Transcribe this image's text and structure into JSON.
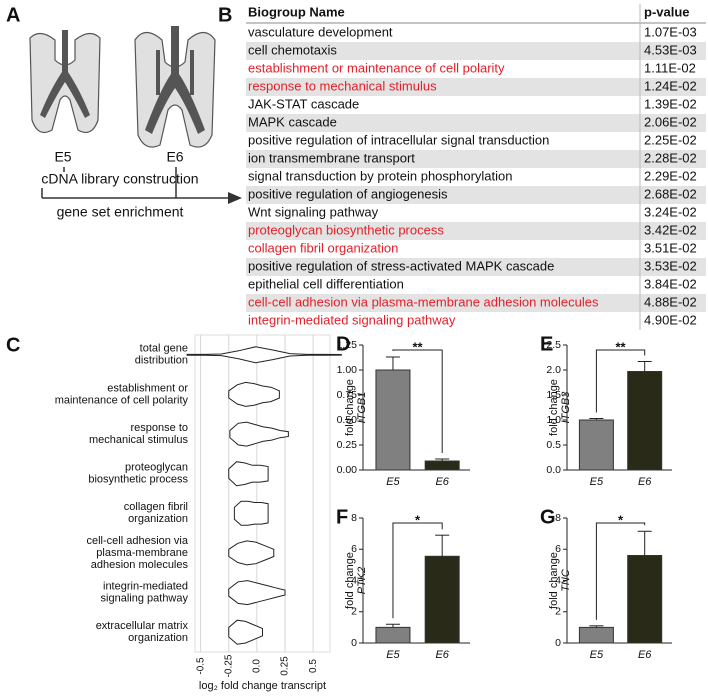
{
  "diagram": {
    "letter": "A",
    "stage_left": "E5",
    "stage_right": "E6",
    "step1": "cDNA library construction",
    "step2": "gene set enrichment"
  },
  "table": {
    "letter": "B",
    "header": [
      "Biogroup Name",
      "p-value"
    ],
    "highlight_color": "#e3202a",
    "stripe_color": "#e3e3e3",
    "rows": [
      {
        "name": "vasculature development",
        "p_value": "1.07E-03",
        "highlight": false
      },
      {
        "name": "cell chemotaxis",
        "p_value": "4.53E-03",
        "highlight": false
      },
      {
        "name": "establishment or maintenance of cell polarity",
        "p_value": "1.11E-02",
        "highlight": true
      },
      {
        "name": "response to mechanical stimulus",
        "p_value": "1.24E-02",
        "highlight": true
      },
      {
        "name": "JAK-STAT cascade",
        "p_value": "1.39E-02",
        "highlight": false
      },
      {
        "name": "MAPK cascade",
        "p_value": "2.06E-02",
        "highlight": false
      },
      {
        "name": "positive regulation of intracellular signal transduction",
        "p_value": "2.25E-02",
        "highlight": false
      },
      {
        "name": "ion transmembrane transport",
        "p_value": "2.28E-02",
        "highlight": false
      },
      {
        "name": "signal transduction by protein phosphorylation",
        "p_value": "2.29E-02",
        "highlight": false
      },
      {
        "name": "positive regulation of angiogenesis",
        "p_value": "2.68E-02",
        "highlight": false
      },
      {
        "name": "Wnt signaling pathway",
        "p_value": "3.24E-02",
        "highlight": false
      },
      {
        "name": "proteoglycan biosynthetic process",
        "p_value": "3.42E-02",
        "highlight": true
      },
      {
        "name": "collagen fibril organization",
        "p_value": "3.51E-02",
        "highlight": true
      },
      {
        "name": "positive regulation of stress-activated MAPK cascade",
        "p_value": "3.53E-02",
        "highlight": false
      },
      {
        "name": "epithelial cell differentiation",
        "p_value": "3.84E-02",
        "highlight": false
      },
      {
        "name": "cell-cell adhesion via plasma-membrane adhesion molecules",
        "p_value": "4.88E-02",
        "highlight": true
      },
      {
        "name": "integrin-mediated signaling pathway",
        "p_value": "4.90E-02",
        "highlight": true
      }
    ]
  },
  "chart_data": [
    {
      "type": "violin",
      "panel_label": "C",
      "xlabel": "log₂ fold change transcript",
      "grid": true,
      "xlim": [
        -0.55,
        0.65
      ],
      "xticks": [
        {
          "value": -0.5,
          "label": "-0.5"
        },
        {
          "value": -0.25,
          "label": "-0.25"
        },
        {
          "value": 0,
          "label": "0.0"
        },
        {
          "value": 0.25,
          "label": "0.25"
        },
        {
          "value": 0.5,
          "label": "0.5"
        }
      ],
      "violins": [
        {
          "label": [
            "total gene",
            "distribution"
          ],
          "min": -0.62,
          "max": 0.75,
          "density": [
            0.05,
            0.05,
            0.1,
            0.5,
            1,
            0.6,
            0.15,
            0.05,
            0.05,
            0.04
          ]
        },
        {
          "label": [
            "establishment or",
            "maintenance of cell polarity"
          ],
          "min": -0.25,
          "max": 0.2,
          "density": [
            0.3,
            0.8,
            1,
            0.9,
            0.7,
            0.6,
            0.3
          ]
        },
        {
          "label": [
            "response to",
            "mechanical stimulus"
          ],
          "min": -0.24,
          "max": 0.28,
          "density": [
            0.3,
            0.9,
            1,
            0.8,
            0.6,
            0.5,
            0.3,
            0.2
          ]
        },
        {
          "label": [
            "proteoglycan",
            "biosynthetic process"
          ],
          "min": -0.25,
          "max": 0.1,
          "density": [
            0.4,
            1,
            0.9,
            0.7,
            0.7,
            0.6
          ]
        },
        {
          "label": [
            "collagen fibril",
            "organization"
          ],
          "min": -0.2,
          "max": 0.1,
          "density": [
            0.5,
            1,
            1,
            0.9,
            0.9,
            0.8
          ]
        },
        {
          "label": [
            "cell-cell adhesion via",
            "plasma-membrane",
            "adhesion molecules"
          ],
          "min": -0.25,
          "max": 0.15,
          "density": [
            0.3,
            0.8,
            1,
            0.9,
            0.6,
            0.3
          ]
        },
        {
          "label": [
            "integrin-mediated",
            "signaling pathway"
          ],
          "min": -0.25,
          "max": 0.25,
          "density": [
            0.3,
            0.9,
            1,
            0.8,
            0.6,
            0.4,
            0.2
          ]
        },
        {
          "label": [
            "extracellular matrix",
            "organization"
          ],
          "min": -0.25,
          "max": 0.05,
          "density": [
            0.4,
            1,
            0.9,
            0.6,
            0.3
          ]
        }
      ]
    },
    {
      "type": "bar",
      "panel_label": "D",
      "ylabel": "fold change",
      "gene": "ITGB1",
      "categories": [
        "E5",
        "E6"
      ],
      "values": [
        1.0,
        0.09
      ],
      "errors": [
        0.13,
        0.02
      ],
      "colors": [
        "#808080",
        "#2a2a18"
      ],
      "significance": "**",
      "ylim": [
        0,
        1.25
      ],
      "yticks": [
        {
          "value": 0,
          "label": "0.00"
        },
        {
          "value": 0.25,
          "label": "0.25"
        },
        {
          "value": 0.5,
          "label": "0.50"
        },
        {
          "value": 0.75,
          "label": "0.75"
        },
        {
          "value": 1,
          "label": "1.00"
        },
        1.25
      ]
    },
    {
      "type": "bar",
      "panel_label": "E",
      "ylabel": "fold change",
      "gene": "ITGB3",
      "categories": [
        "E5",
        "E6"
      ],
      "values": [
        1.0,
        1.97
      ],
      "errors": [
        0.03,
        0.2
      ],
      "colors": [
        "#808080",
        "#2a2a18"
      ],
      "significance": "**",
      "ylim": [
        0,
        2.5
      ],
      "yticks": [
        {
          "value": 0,
          "label": "0.0"
        },
        0.5,
        {
          "value": 1,
          "label": "1.0"
        },
        1.5,
        {
          "value": 2,
          "label": "2.0"
        },
        2.5
      ]
    },
    {
      "type": "bar",
      "panel_label": "F",
      "ylabel": "fold change",
      "gene": "PTK2",
      "categories": [
        "E5",
        "E6"
      ],
      "values": [
        1.0,
        5.55
      ],
      "errors": [
        0.2,
        1.35
      ],
      "colors": [
        "#808080",
        "#2a2a18"
      ],
      "significance": "*",
      "ylim": [
        0,
        8
      ],
      "yticks": [
        0,
        2,
        4,
        6,
        8
      ]
    },
    {
      "type": "bar",
      "panel_label": "G",
      "ylabel": "fold change",
      "gene": "TNC",
      "categories": [
        "E5",
        "E6"
      ],
      "values": [
        1.0,
        5.6
      ],
      "errors": [
        0.1,
        1.55
      ],
      "colors": [
        "#808080",
        "#2a2a18"
      ],
      "significance": "*",
      "ylim": [
        0,
        8
      ],
      "yticks": [
        0,
        2,
        4,
        6,
        8
      ]
    }
  ]
}
